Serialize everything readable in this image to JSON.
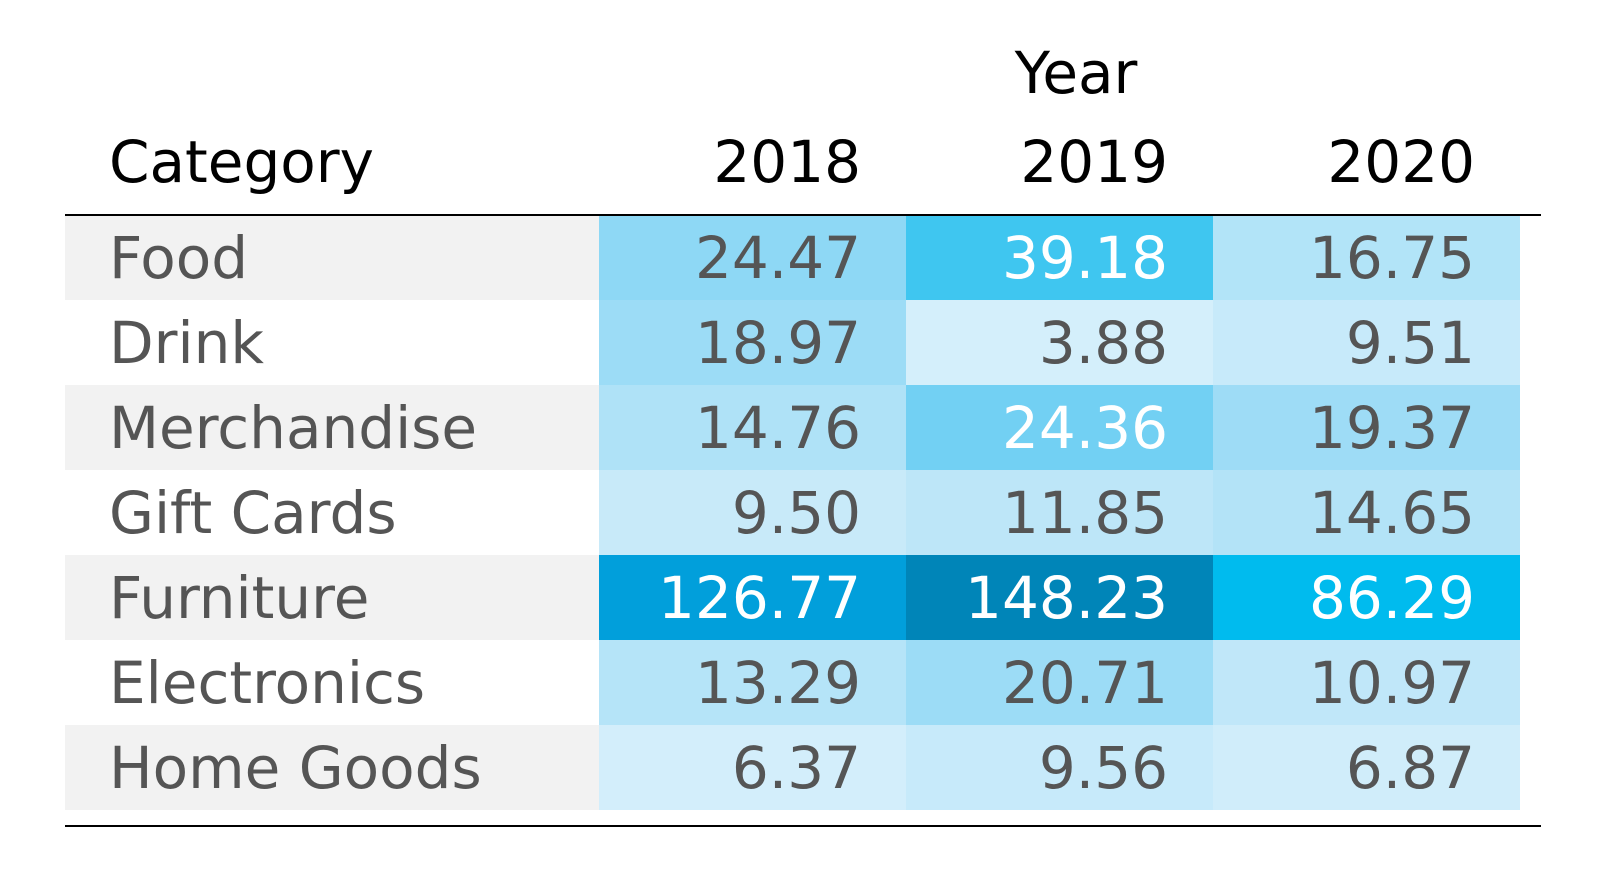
{
  "chart_data": {
    "type": "heatmap",
    "column_group_label": "Year",
    "row_header": "Category",
    "columns": [
      "2018",
      "2019",
      "2020"
    ],
    "rows": [
      {
        "category": "Food",
        "values": [
          "24.47",
          "39.18",
          "16.75"
        ]
      },
      {
        "category": "Drink",
        "values": [
          "18.97",
          "3.88",
          "9.51"
        ]
      },
      {
        "category": "Merchandise",
        "values": [
          "14.76",
          "24.36",
          "19.37"
        ]
      },
      {
        "category": "Gift Cards",
        "values": [
          "9.50",
          "11.85",
          "14.65"
        ]
      },
      {
        "category": "Furniture",
        "values": [
          "126.77",
          "148.23",
          "86.29"
        ]
      },
      {
        "category": "Electronics",
        "values": [
          "13.29",
          "20.71",
          "10.97"
        ]
      },
      {
        "category": "Home Goods",
        "values": [
          "6.37",
          "9.56",
          "6.87"
        ]
      }
    ],
    "cell_colors": [
      [
        "#8ed8f5",
        "#3fc6f0",
        "#b2e4f8"
      ],
      [
        "#9cdcf6",
        "#d4effb",
        "#c7eafa"
      ],
      [
        "#afe2f7",
        "#72d0f3",
        "#9edcf6"
      ],
      [
        "#c8eaf9",
        "#bde6f8",
        "#b3e3f7"
      ],
      [
        "#019fdb",
        "#0085b8",
        "#00bbee"
      ],
      [
        "#b5e4f8",
        "#9cdcf6",
        "#c0e7f9"
      ],
      [
        "#d3eefb",
        "#c7eafa",
        "#d0edfa"
      ]
    ],
    "row_label_backgrounds": [
      "#f2f2f2",
      "#ffffff",
      "#f2f2f2",
      "#ffffff",
      "#f2f2f2",
      "#ffffff",
      "#f2f2f2"
    ],
    "text_color_dark": "#555555",
    "text_color_light": "#ffffff",
    "header_color": "#000000",
    "rule_color": "#000000"
  }
}
